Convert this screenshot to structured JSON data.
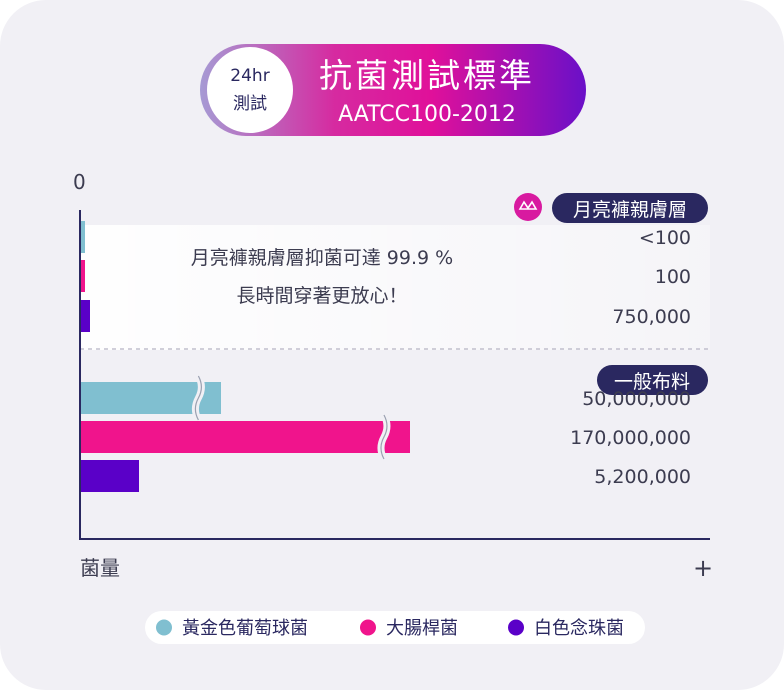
{
  "badge": {
    "hours": "24hr",
    "test": "測試"
  },
  "banner": {
    "title": "抗菌測試標準",
    "subtitle": "AATCC100-2012"
  },
  "axes": {
    "zero": "0",
    "ylabel": "菌量",
    "plus": "+"
  },
  "groups": {
    "product": "月亮褲親膚層",
    "regular": "一般布料"
  },
  "callout": {
    "line1": "月亮褲親膚層抑菌可達 99.9 %",
    "line2": "長時間穿著更放心！"
  },
  "colors": {
    "gold": "#80bfd0",
    "coli": "#f0148c",
    "white": "#5a00c8",
    "navy": "#2a2860",
    "bannerStart": "#9a8ed0",
    "bannerMid": "#e0109a",
    "bannerEnd": "#6a10c8"
  },
  "chart_data": {
    "type": "bar",
    "orientation": "horizontal",
    "axis_break": true,
    "series": [
      {
        "name": "黃金色葡萄球菌",
        "color": "#80bfd0"
      },
      {
        "name": "大腸桿菌",
        "color": "#f0148c"
      },
      {
        "name": "白色念珠菌",
        "color": "#5a00c8"
      }
    ],
    "groups": [
      {
        "name": "月亮褲親膚層",
        "labels": [
          "<100",
          "100",
          "750,000"
        ],
        "values": [
          100,
          100,
          750000
        ],
        "broken": [
          false,
          false,
          false
        ]
      },
      {
        "name": "一般布料",
        "labels": [
          "50,000,000",
          "170,000,000",
          "5,200,000"
        ],
        "values": [
          50000000,
          170000000,
          5200000
        ],
        "broken": [
          true,
          true,
          false
        ]
      }
    ]
  }
}
